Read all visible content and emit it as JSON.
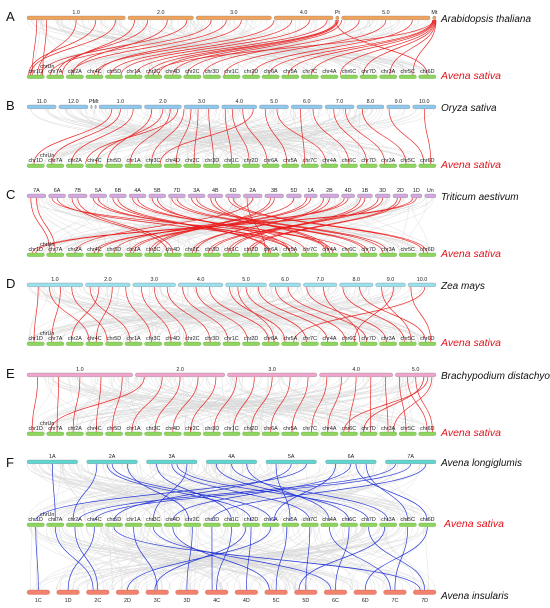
{
  "colors": {
    "background_link": "#d9d9d9",
    "highlight_link_red": "#ea1d1d",
    "highlight_link_blue": "#1f2fd6",
    "oat_chromosome": "#8fd45f",
    "target_species_text": "#e0131b"
  },
  "oat_chromosomes": [
    "chr1D",
    "chr7A",
    "chr2A",
    "chr4C",
    "chr5D",
    "chr1A",
    "chr3C",
    "chr4D",
    "chr2C",
    "chr3D",
    "chr1C",
    "chr2D",
    "chr6A",
    "chr5A",
    "chr7C",
    "chr4A",
    "chr6C",
    "chr7D",
    "chr3A",
    "chr5C",
    "chr6D"
  ],
  "oat_unplaced": "chrUn",
  "panels": [
    {
      "letter": "A",
      "species": "Arabidopsis thaliana",
      "target": "Avena sativa",
      "bar_color": "#f0a35c",
      "link_color": "#ea1d1d",
      "segments": [
        {
          "label": "1.0",
          "w": 30
        },
        {
          "label": "2.0",
          "w": 20
        },
        {
          "label": "3.0",
          "w": 23
        },
        {
          "label": "4.0",
          "w": 18
        },
        {
          "label": "Pt",
          "w": 1
        },
        {
          "label": "5.0",
          "w": 27
        },
        {
          "label": "Mt",
          "w": 1
        }
      ],
      "links": [
        [
          0.1,
          0.3
        ],
        [
          0.2,
          0.9
        ],
        [
          0.5,
          0.6
        ],
        [
          0.7,
          0.1
        ],
        [
          0.9,
          0.2
        ],
        [
          1.1,
          1.9
        ],
        [
          1.3,
          1.6
        ],
        [
          1.6,
          2.4
        ],
        [
          1.9,
          0.8
        ],
        [
          2.2,
          1.2
        ],
        [
          2.4,
          2.3
        ],
        [
          2.6,
          3.7
        ],
        [
          3.0,
          3.5
        ],
        [
          3.3,
          4.3
        ],
        [
          3.6,
          4.9
        ],
        [
          3.9,
          5.6
        ],
        [
          4.2,
          6.2
        ],
        [
          4.5,
          6.8
        ],
        [
          4.8,
          7.5
        ],
        [
          5.0,
          8.2
        ],
        [
          5.2,
          9.0
        ],
        [
          5.5,
          10.1
        ],
        [
          5.8,
          11.6
        ],
        [
          6.0,
          12.4
        ],
        [
          6.2,
          13.4
        ],
        [
          6.4,
          14.6
        ],
        [
          6.6,
          16.0
        ],
        [
          6.8,
          17.2
        ],
        [
          6.9,
          18.6
        ],
        [
          7.0,
          19.8
        ],
        [
          4.0,
          20.5
        ],
        [
          6.1,
          6.5
        ]
      ]
    },
    {
      "letter": "B",
      "species": "Oryza sativa",
      "target": "Avena sativa",
      "bar_color": "#8ec8ee",
      "link_color": "#ea1d1d",
      "segments": [
        {
          "label": "11.0",
          "w": 15
        },
        {
          "label": "12.0",
          "w": 15
        },
        {
          "label": "Pt",
          "w": 0.8
        },
        {
          "label": "Mt",
          "w": 0.8
        },
        {
          "label": "1.0",
          "w": 22
        },
        {
          "label": "2.0",
          "w": 19
        },
        {
          "label": "3.0",
          "w": 18
        },
        {
          "label": "4.0",
          "w": 18
        },
        {
          "label": "5.0",
          "w": 15
        },
        {
          "label": "6.0",
          "w": 16
        },
        {
          "label": "7.0",
          "w": 15
        },
        {
          "label": "8.0",
          "w": 14
        },
        {
          "label": "9.0",
          "w": 12
        },
        {
          "label": "10.0",
          "w": 12
        }
      ],
      "links": [
        [
          4.3,
          0.4
        ],
        [
          4.5,
          1.3
        ],
        [
          4.8,
          2.3
        ],
        [
          5.2,
          4.1
        ],
        [
          5.5,
          3.6
        ],
        [
          5.7,
          5.3
        ],
        [
          6.0,
          6.4
        ],
        [
          6.2,
          7.7
        ],
        [
          6.4,
          8.6
        ],
        [
          6.7,
          9.6
        ],
        [
          7.1,
          10.5
        ],
        [
          7.3,
          11.4
        ],
        [
          7.6,
          12.3
        ],
        [
          8.2,
          13.3
        ],
        [
          8.6,
          15.3
        ],
        [
          9.3,
          14.2
        ],
        [
          9.7,
          16.5
        ],
        [
          10.3,
          17.4
        ],
        [
          10.7,
          18.3
        ],
        [
          11.2,
          19.4
        ],
        [
          12.1,
          20.3
        ],
        [
          13.5,
          20.7
        ],
        [
          5.9,
          3.0
        ],
        [
          7.9,
          6.9
        ]
      ]
    },
    {
      "letter": "C",
      "species": "Triticum aestivum",
      "target": "Avena sativa",
      "bar_color": "#d4a7e0",
      "link_color": "#ea1d1d",
      "segments": [
        {
          "label": "7A",
          "w": 10
        },
        {
          "label": "6A",
          "w": 9
        },
        {
          "label": "7B",
          "w": 10
        },
        {
          "label": "5A",
          "w": 9
        },
        {
          "label": "6B",
          "w": 9
        },
        {
          "label": "4A",
          "w": 9
        },
        {
          "label": "5B",
          "w": 9
        },
        {
          "label": "7D",
          "w": 9
        },
        {
          "label": "3A",
          "w": 9
        },
        {
          "label": "4B",
          "w": 8
        },
        {
          "label": "6D",
          "w": 8
        },
        {
          "label": "2A",
          "w": 10
        },
        {
          "label": "3B",
          "w": 10
        },
        {
          "label": "5D",
          "w": 8
        },
        {
          "label": "1A",
          "w": 7
        },
        {
          "label": "2B",
          "w": 10
        },
        {
          "label": "4D",
          "w": 7
        },
        {
          "label": "1B",
          "w": 8
        },
        {
          "label": "3D",
          "w": 8
        },
        {
          "label": "2D",
          "w": 8
        },
        {
          "label": "1D",
          "w": 6
        },
        {
          "label": "Un",
          "w": 6
        }
      ],
      "links": [
        [
          0.5,
          1.5
        ],
        [
          1.5,
          13.5
        ],
        [
          2.5,
          7.5
        ],
        [
          3.5,
          13.5
        ],
        [
          4.5,
          12.5
        ],
        [
          5.5,
          15.5
        ],
        [
          6.5,
          13.5
        ],
        [
          7.5,
          17.5
        ],
        [
          8.5,
          18.5
        ],
        [
          9.5,
          15.5
        ],
        [
          10.5,
          20.5
        ],
        [
          11.5,
          2.5
        ],
        [
          12.5,
          6.5
        ],
        [
          13.5,
          4.5
        ],
        [
          14.5,
          5.5
        ],
        [
          15.5,
          8.5
        ],
        [
          16.5,
          3.5
        ],
        [
          17.5,
          10.5
        ],
        [
          18.5,
          9.5
        ],
        [
          19.5,
          11.5
        ],
        [
          20.5,
          0.5
        ],
        [
          11.2,
          12.2
        ],
        [
          12.3,
          6.3
        ],
        [
          14.2,
          5.3
        ],
        [
          15.2,
          8.7
        ],
        [
          16.2,
          3.7
        ],
        [
          17.2,
          10.3
        ],
        [
          18.2,
          9.3
        ],
        [
          19.3,
          11.3
        ],
        [
          20.2,
          0.3
        ],
        [
          1.2,
          16.5
        ],
        [
          0.2,
          1.2
        ],
        [
          4.2,
          12.4
        ],
        [
          3.2,
          13.8
        ],
        [
          5.2,
          15.7
        ],
        [
          8.2,
          18.2
        ],
        [
          9.2,
          15.3
        ],
        [
          7.2,
          17.3
        ],
        [
          6.2,
          14.3
        ],
        [
          2.2,
          7.2
        ],
        [
          10.2,
          20.3
        ]
      ]
    },
    {
      "letter": "D",
      "species": "Zea mays",
      "target": "Avena sativa",
      "bar_color": "#9ae0ee",
      "link_color": "#ea1d1d",
      "segments": [
        {
          "label": "1.0",
          "w": 30
        },
        {
          "label": "2.0",
          "w": 24
        },
        {
          "label": "3.0",
          "w": 23
        },
        {
          "label": "4.0",
          "w": 24
        },
        {
          "label": "5.0",
          "w": 22
        },
        {
          "label": "6.0",
          "w": 17
        },
        {
          "label": "7.0",
          "w": 18
        },
        {
          "label": "8.0",
          "w": 18
        },
        {
          "label": "9.0",
          "w": 16
        },
        {
          "label": "10.0",
          "w": 15
        }
      ],
      "links": [
        [
          0.2,
          0.4
        ],
        [
          0.4,
          3.2
        ],
        [
          0.6,
          1.3
        ],
        [
          0.8,
          4.1
        ],
        [
          1.1,
          5.3
        ],
        [
          1.3,
          2.3
        ],
        [
          1.6,
          3.6
        ],
        [
          1.9,
          6.4
        ],
        [
          2.2,
          7.4
        ],
        [
          2.5,
          8.2
        ],
        [
          2.8,
          9.4
        ],
        [
          3.1,
          10.3
        ],
        [
          3.4,
          11.3
        ],
        [
          3.7,
          12.4
        ],
        [
          4.1,
          13.2
        ],
        [
          4.3,
          12.7
        ],
        [
          4.5,
          14.3
        ],
        [
          4.8,
          15.4
        ],
        [
          5.2,
          16.3
        ],
        [
          5.6,
          17.4
        ],
        [
          6.1,
          18.4
        ],
        [
          6.6,
          17.0
        ],
        [
          7.1,
          19.3
        ],
        [
          7.6,
          20.4
        ],
        [
          8.2,
          19.7
        ],
        [
          8.6,
          16.8
        ],
        [
          9.1,
          20.7
        ],
        [
          9.6,
          13.7
        ]
      ]
    },
    {
      "letter": "E",
      "species": "Brachypodium distachyon",
      "target": "Avena sativa",
      "bar_color": "#f0a6cc",
      "link_color": "#ea1d1d",
      "segments": [
        {
          "label": "1.0",
          "w": 26
        },
        {
          "label": "2.0",
          "w": 22
        },
        {
          "label": "3.0",
          "w": 22
        },
        {
          "label": "4.0",
          "w": 18
        },
        {
          "label": "5.0",
          "w": 10
        }
      ],
      "links": [
        [
          0.1,
          0.3
        ],
        [
          0.3,
          1.6
        ],
        [
          0.5,
          2.4
        ],
        [
          0.7,
          3.6
        ],
        [
          0.9,
          4.4
        ],
        [
          1.1,
          1.2
        ],
        [
          1.3,
          5.4
        ],
        [
          1.5,
          6.6
        ],
        [
          1.7,
          7.5
        ],
        [
          1.9,
          8.4
        ],
        [
          2.1,
          9.6
        ],
        [
          2.3,
          10.6
        ],
        [
          2.5,
          11.5
        ],
        [
          2.7,
          12.5
        ],
        [
          2.9,
          13.6
        ],
        [
          3.1,
          14.6
        ],
        [
          3.3,
          15.4
        ],
        [
          3.5,
          16.5
        ],
        [
          3.7,
          17.6
        ],
        [
          3.9,
          18.5
        ],
        [
          4.1,
          19.4
        ],
        [
          4.3,
          20.5
        ],
        [
          4.5,
          20.8
        ],
        [
          4.7,
          17.2
        ],
        [
          4.9,
          18.8
        ],
        [
          4.8,
          16.2
        ]
      ]
    },
    {
      "letter": "F",
      "species": "Avena longiglumis",
      "target": "Avena sativa",
      "bottom_species": "Avena insularis",
      "bar_color": "#5fd6d2",
      "bottom_color": "#f2826e",
      "link_color": "#1f2fd6",
      "segments": [
        {
          "label": "1A",
          "w": 10
        },
        {
          "label": "2A",
          "w": 10
        },
        {
          "label": "3A",
          "w": 10
        },
        {
          "label": "4A",
          "w": 10
        },
        {
          "label": "5A",
          "w": 10
        },
        {
          "label": "6A",
          "w": 10
        },
        {
          "label": "7A",
          "w": 10
        }
      ],
      "bottom_segments": [
        "1C",
        "1D",
        "2C",
        "2D",
        "3C",
        "3D",
        "4C",
        "4D",
        "5C",
        "5D",
        "6C",
        "6D",
        "7C",
        "7D"
      ],
      "links_top": [
        [
          0.5,
          1.5
        ],
        [
          1.2,
          2.4
        ],
        [
          1.5,
          12.5
        ],
        [
          1.8,
          8.3
        ],
        [
          2.2,
          10.5
        ],
        [
          2.5,
          14.5
        ],
        [
          2.8,
          6.5
        ],
        [
          3.2,
          16.5
        ],
        [
          3.5,
          18.5
        ],
        [
          3.8,
          15.5
        ],
        [
          4.2,
          13.5
        ],
        [
          4.5,
          4.5
        ],
        [
          4.8,
          0.5
        ],
        [
          5.2,
          12.7
        ],
        [
          5.5,
          7.5
        ],
        [
          5.8,
          19.5
        ],
        [
          6.2,
          2.7
        ],
        [
          6.5,
          3.5
        ],
        [
          6.8,
          9.5
        ],
        [
          1.4,
          11.5
        ],
        [
          2.6,
          17.5
        ],
        [
          5.6,
          20.5
        ]
      ],
      "links_bottom": [
        [
          0.5,
          0.5
        ],
        [
          1.5,
          3.5
        ],
        [
          2.5,
          2.5
        ],
        [
          3.5,
          12.5
        ],
        [
          4.5,
          5.5
        ],
        [
          5.5,
          8.5
        ],
        [
          6.5,
          10.5
        ],
        [
          7.5,
          11.5
        ],
        [
          8.5,
          13.3
        ],
        [
          9.5,
          14.5
        ],
        [
          10.5,
          16.5
        ],
        [
          11.5,
          20.5
        ],
        [
          12.5,
          19.5
        ],
        [
          13.5,
          17.5
        ],
        [
          2.3,
          1.5
        ],
        [
          6.3,
          9.5
        ],
        [
          9.2,
          18.3
        ],
        [
          10.3,
          6.5
        ],
        [
          8.2,
          7.5
        ],
        [
          12.3,
          15.5
        ],
        [
          13.3,
          4.5
        ],
        [
          4.4,
          11.2
        ]
      ]
    }
  ]
}
